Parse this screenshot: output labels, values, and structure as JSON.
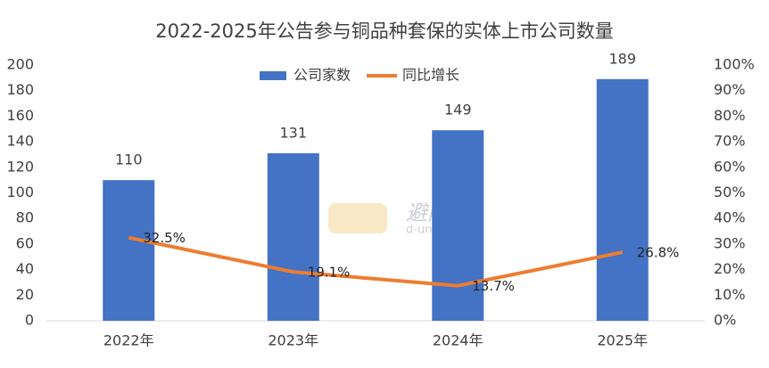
{
  "chart_data": {
    "type": "bar",
    "title": "2022-2025年公告参与铜品种套保的实体上市公司数量",
    "categories": [
      "2022年",
      "2023年",
      "2024年",
      "2025年"
    ],
    "series": [
      {
        "name": "公司家数",
        "type": "bar",
        "color": "#4472c4",
        "values": [
          110,
          131,
          149,
          189
        ]
      },
      {
        "name": "同比增长",
        "type": "line",
        "axis": "y2",
        "color": "#ed7d31",
        "values": [
          32.5,
          19.1,
          13.7,
          26.8
        ],
        "value_labels": [
          "32.5%",
          "19.1%",
          "13.7%",
          "26.8%"
        ]
      }
    ],
    "ylim": [
      0,
      200
    ],
    "yticks": [
      0,
      20,
      40,
      60,
      80,
      100,
      120,
      140,
      160,
      180,
      200
    ],
    "y2lim": [
      0,
      100
    ],
    "y2ticks": [
      {
        "value": 0,
        "label": "0%"
      },
      {
        "value": 10,
        "label": "10%"
      },
      {
        "value": 20,
        "label": "20%"
      },
      {
        "value": 30,
        "label": "30%"
      },
      {
        "value": 40,
        "label": "40%"
      },
      {
        "value": 50,
        "label": "50%"
      },
      {
        "value": 60,
        "label": "60%"
      },
      {
        "value": 70,
        "label": "70%"
      },
      {
        "value": 80,
        "label": "80%"
      },
      {
        "value": 90,
        "label": "90%"
      },
      {
        "value": 100,
        "label": "100%"
      }
    ],
    "grid": false,
    "legend": "top",
    "watermark": [
      "避险网",
      "d-union.net"
    ]
  }
}
